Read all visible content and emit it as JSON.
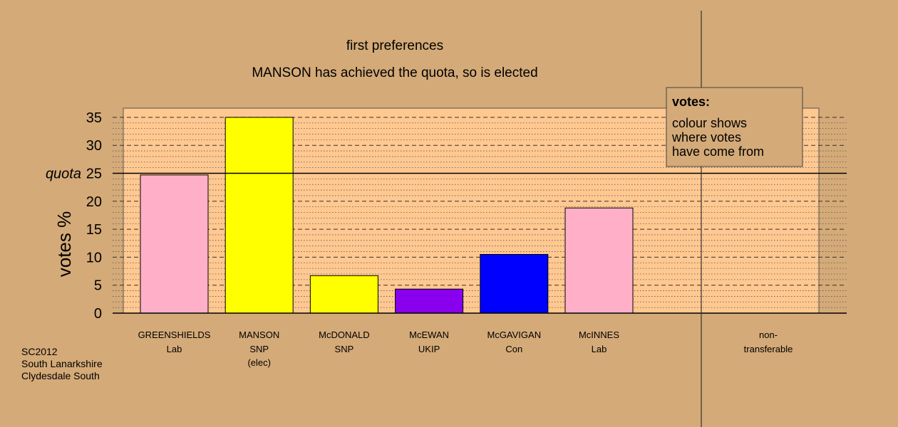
{
  "chart_data": {
    "type": "bar",
    "title": "first preferences",
    "subtitle": "MANSON has achieved the quota, so is elected",
    "ylabel": "votes %",
    "ylim": [
      0,
      35
    ],
    "yticks": [
      0,
      5,
      10,
      15,
      20,
      25,
      30,
      35
    ],
    "quota": {
      "label": "quota",
      "value": 25
    },
    "grid": true,
    "categories": [
      {
        "name": "GREENSHIELDS",
        "party": "Lab",
        "note": "",
        "value": 24.7,
        "color": "#ffb0c8"
      },
      {
        "name": "MANSON",
        "party": "SNP",
        "note": "(elec)",
        "value": 35.0,
        "color": "#ffff00"
      },
      {
        "name": "McDONALD",
        "party": "SNP",
        "note": "",
        "value": 6.7,
        "color": "#ffff00"
      },
      {
        "name": "McEWAN",
        "party": "UKIP",
        "note": "",
        "value": 4.3,
        "color": "#8800ee"
      },
      {
        "name": "McGAVIGAN",
        "party": "Con",
        "note": "",
        "value": 10.5,
        "color": "#0000ff"
      },
      {
        "name": "McINNES",
        "party": "Lab",
        "note": "",
        "value": 18.8,
        "color": "#ffb0c8"
      }
    ],
    "nontransferable": {
      "line1": "non-",
      "line2": "transferable",
      "value": 0
    },
    "legend": {
      "title": "votes:",
      "lines": [
        "colour shows",
        "where votes",
        "have come from"
      ],
      "placement": "top-right"
    }
  },
  "footer": {
    "line1": "SC2012",
    "line2": "South Lanarkshire",
    "line3": "Clydesdale South"
  },
  "colors": {
    "background": "#d4aa78",
    "plot_background": "#ffc890"
  }
}
